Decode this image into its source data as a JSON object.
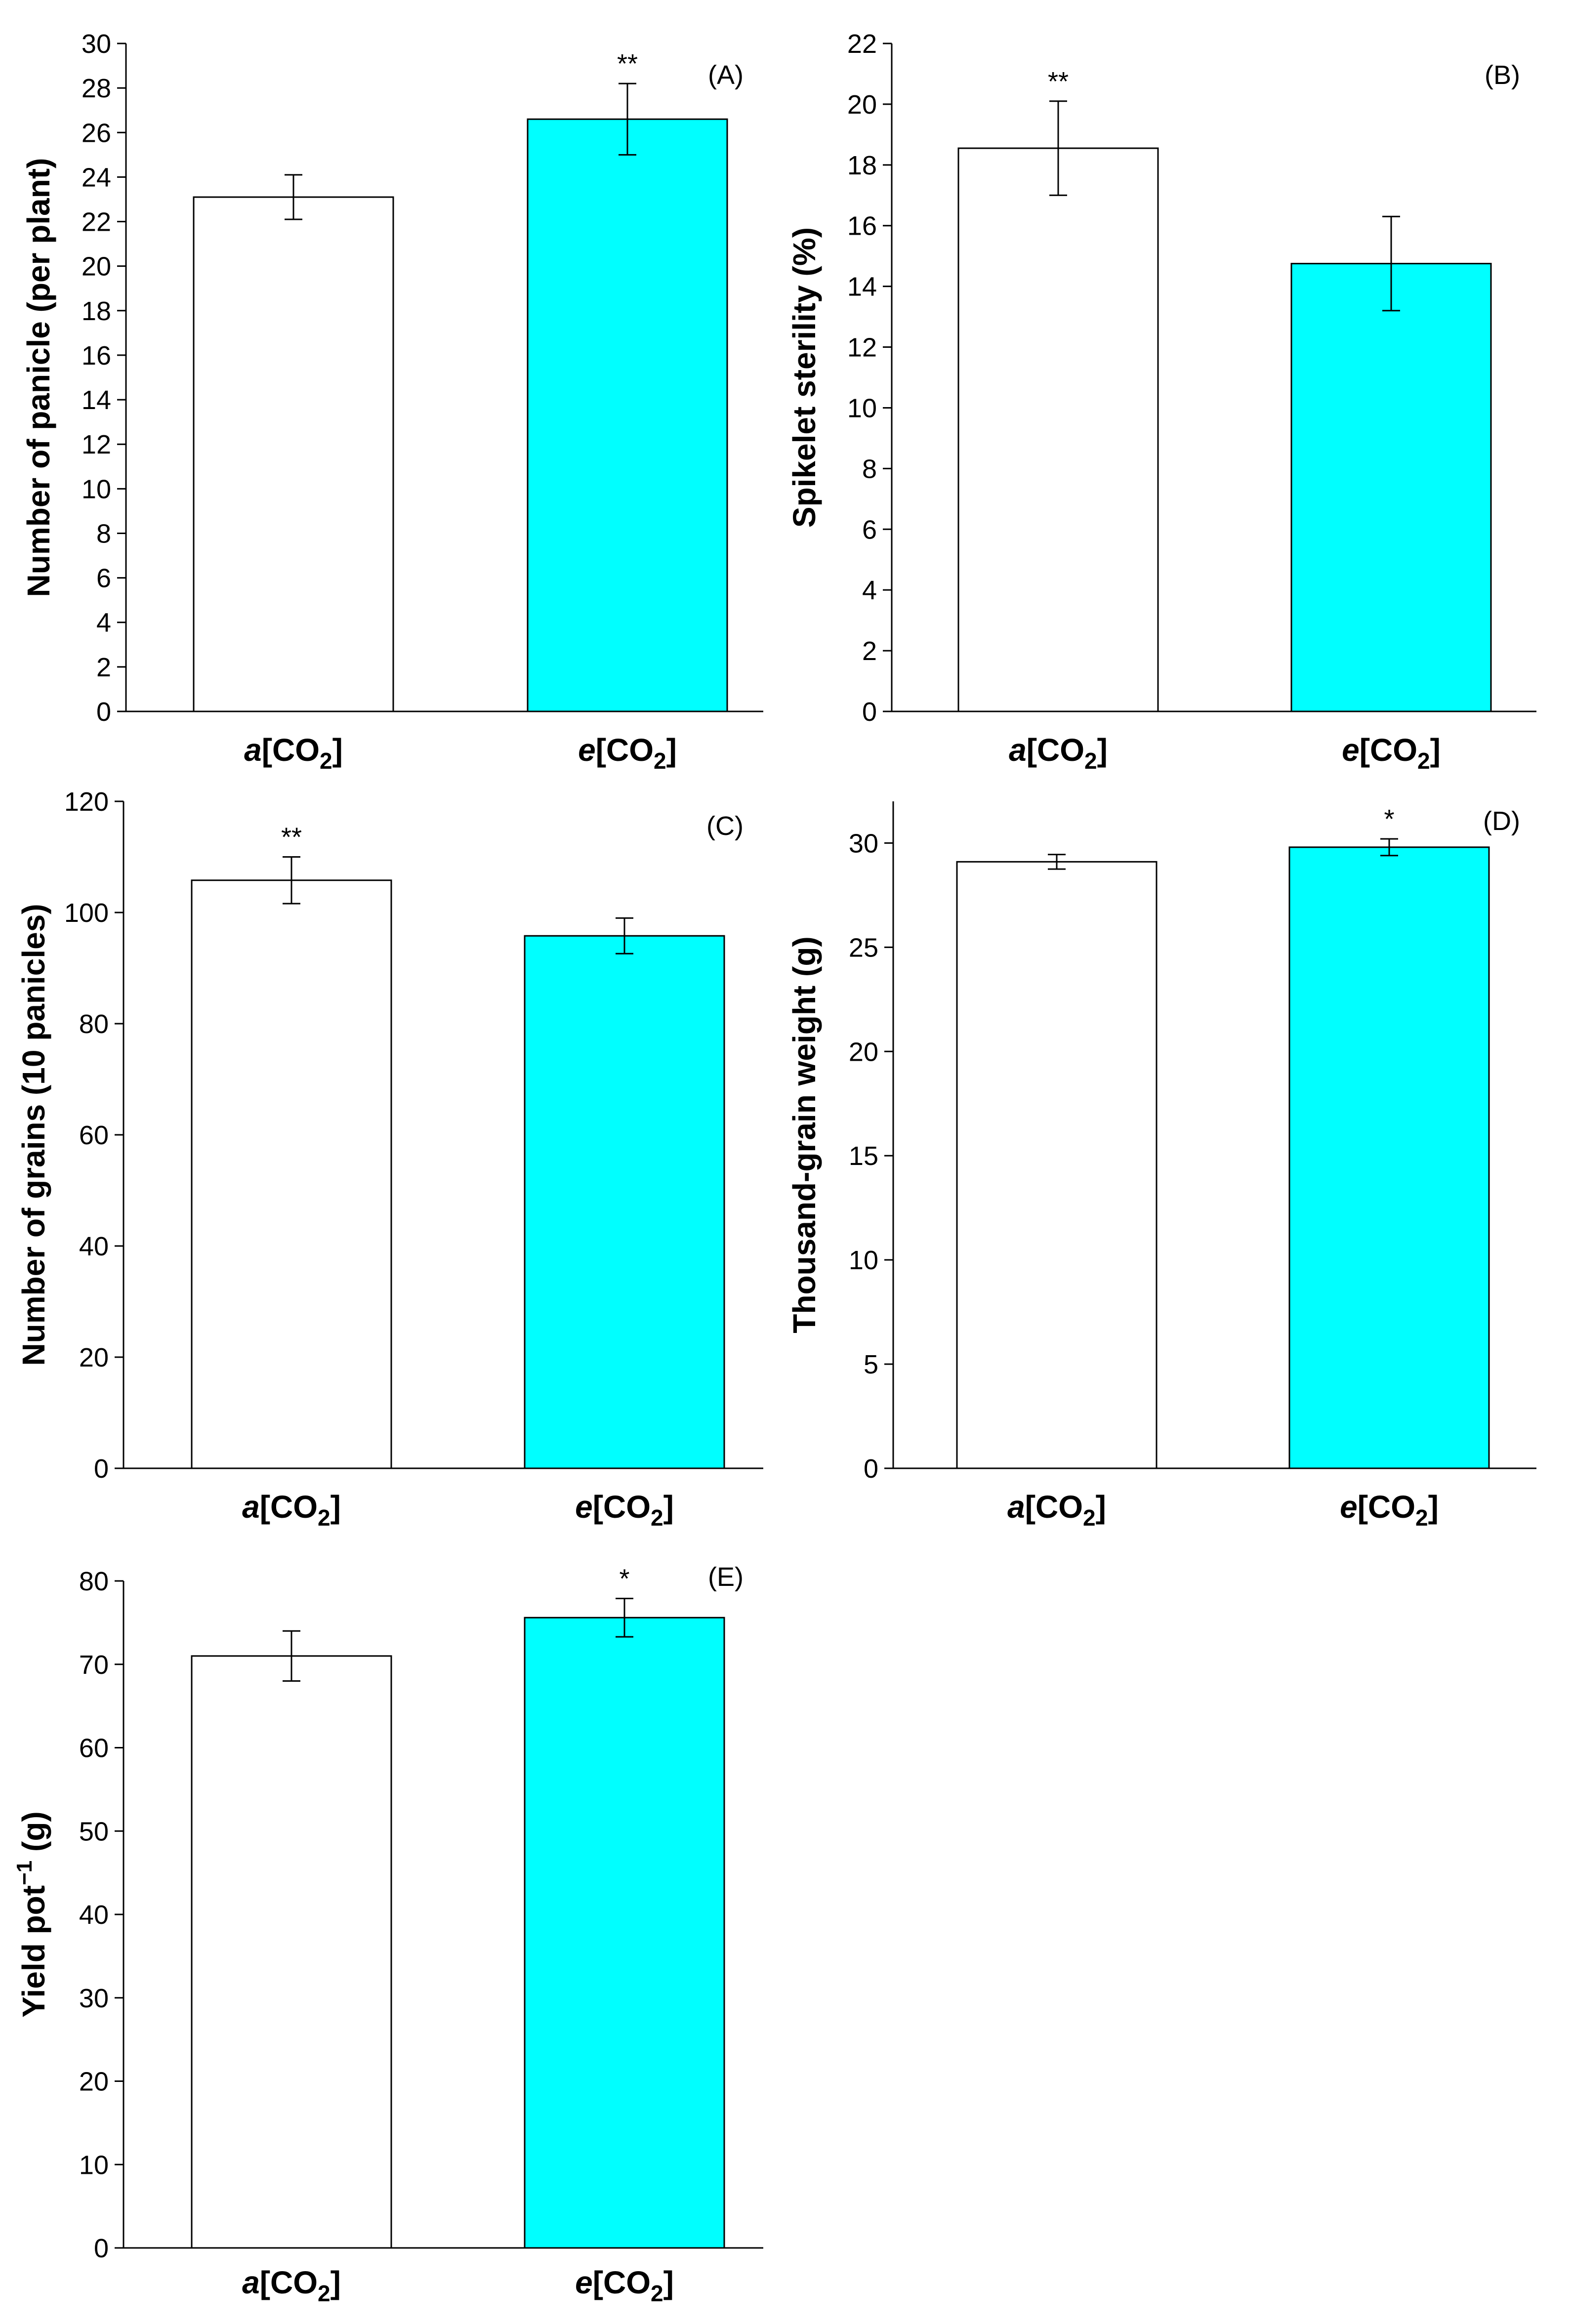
{
  "colors": {
    "ambient": "#ffffff",
    "elevated": "#00ffff",
    "stroke": "#000000"
  },
  "chart_data": [
    {
      "type": "bar",
      "panel": "(A)",
      "ylabel": "Number of panicle (per plant)",
      "ylim": [
        0,
        30
      ],
      "yticks": [
        0,
        2,
        4,
        6,
        8,
        10,
        12,
        14,
        16,
        18,
        20,
        22,
        24,
        26,
        28,
        30
      ],
      "categories": [
        {
          "prefix": "a",
          "mid": "[CO",
          "sub": "2",
          "suffix": "]"
        },
        {
          "prefix": "e",
          "mid": "[CO",
          "sub": "2",
          "suffix": "]"
        }
      ],
      "values": [
        23.1,
        26.6
      ],
      "errors": [
        1.0,
        1.6
      ],
      "significance": [
        "",
        "**"
      ]
    },
    {
      "type": "bar",
      "panel": "(B)",
      "ylabel": "Spikelet sterility (%)",
      "ylim": [
        0,
        22
      ],
      "yticks": [
        0,
        2,
        4,
        6,
        8,
        10,
        12,
        14,
        16,
        18,
        20,
        22
      ],
      "categories": [
        {
          "prefix": "a",
          "mid": "[CO",
          "sub": "2",
          "suffix": "]"
        },
        {
          "prefix": "e",
          "mid": "[CO",
          "sub": "2",
          "suffix": "]"
        }
      ],
      "values": [
        18.55,
        14.75
      ],
      "errors": [
        1.55,
        1.55
      ],
      "significance": [
        "**",
        ""
      ]
    },
    {
      "type": "bar",
      "panel": "(C)",
      "ylabel": "Number of grains (10 panicles)",
      "ylim": [
        0,
        120
      ],
      "yticks": [
        0,
        20,
        40,
        60,
        80,
        100,
        120
      ],
      "categories": [
        {
          "prefix": "a",
          "mid": "[CO",
          "sub": "2",
          "suffix": "]"
        },
        {
          "prefix": "e",
          "mid": "[CO",
          "sub": "2",
          "suffix": "]"
        }
      ],
      "values": [
        105.8,
        95.8
      ],
      "errors": [
        4.2,
        3.2
      ],
      "significance": [
        "**",
        ""
      ]
    },
    {
      "type": "bar",
      "panel": "(D)",
      "ylabel": "Thousand-grain weight (g)",
      "ylim": [
        0,
        32
      ],
      "yticks": [
        0,
        5,
        10,
        15,
        20,
        25,
        30
      ],
      "categories": [
        {
          "prefix": "a",
          "mid": "[CO",
          "sub": "2",
          "suffix": "]"
        },
        {
          "prefix": "e",
          "mid": "[CO",
          "sub": "2",
          "suffix": "]"
        }
      ],
      "values": [
        29.1,
        29.8
      ],
      "errors": [
        0.35,
        0.4
      ],
      "significance": [
        "",
        "*"
      ]
    },
    {
      "type": "bar",
      "panel": "(E)",
      "ylabel": {
        "main": "Yield pot",
        "sup": "−1",
        "unit": " (g)"
      },
      "ylim": [
        0,
        80
      ],
      "yticks": [
        0,
        10,
        20,
        30,
        40,
        50,
        60,
        70,
        80
      ],
      "categories": [
        {
          "prefix": "a",
          "mid": "[CO",
          "sub": "2",
          "suffix": "]"
        },
        {
          "prefix": "e",
          "mid": "[CO",
          "sub": "2",
          "suffix": "]"
        }
      ],
      "values": [
        71.0,
        75.6
      ],
      "errors": [
        3.0,
        2.3
      ],
      "significance": [
        "",
        "*"
      ]
    }
  ]
}
